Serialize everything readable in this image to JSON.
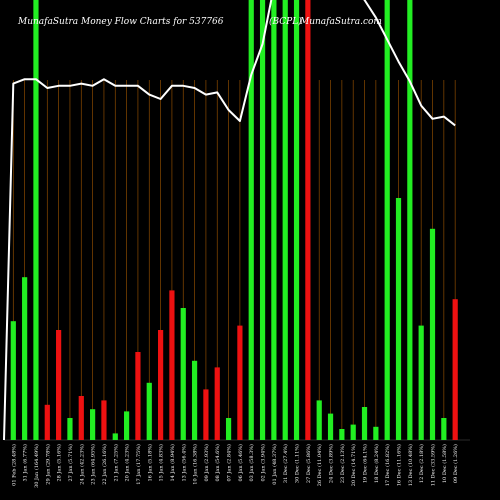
{
  "chart_data": {
    "type": "bar",
    "title": "MunafaSutra  Money Flow  Charts for 537766",
    "title_right": "(BCPL)",
    "watermark": "MunafaSutra.com",
    "ylim": [
      0,
      100
    ],
    "colors": {
      "up": "#22ee22",
      "down": "#ee1111",
      "line": "#ffffff",
      "grid": "#8a4a00",
      "background": "#000000"
    },
    "categories": [
      "01 Feb (28.48%)",
      "31 Jan (6.77%)",
      "30 Jan (164.49%)",
      "29 Jan (29.78%)",
      "28 Jan (5.16%)",
      "27 Jan (5.71%)",
      "24 Jan (42.23%)",
      "23 Jan (64.95%)",
      "22 Jan (26.16%)",
      "21 Jan (7.25%)",
      "20 Jan (4.23%)",
      "17 Jan (17.75%)",
      "16 Jan (5.18%)",
      "15 Jan (4.83%)",
      "14 Jan (8.94%)",
      "13 Jan (56.4%)",
      "10 Jan (16.38%)",
      "09 Jan (2.93%)",
      "08 Jan (54.6%)",
      "07 Jan (2.84%)",
      "06 Jan (5.46%)",
      "03 Jan (58.3%)",
      "02 Jan (3.94%)",
      "01 Jan (48.37%)",
      "31 Dec (27.4%)",
      "30 Dec (1.11%)",
      "27 Dec (5.86%)",
      "26 Dec (11.04%)",
      "24 Dec (3.89%)",
      "23 Dec (2.13%)",
      "20 Dec (14.71%)",
      "19 Dec (64.1%)",
      "18 Dec (8.24%)",
      "17 Dec (16.82%)",
      "16 Dec (11.16%)",
      "13 Dec (10.48%)",
      "12 Dec (2.18%)",
      "11 Dec (33.59%)",
      "10 Dec (1.58%)",
      "09 Dec (1.26%)"
    ],
    "series": [
      {
        "values": [
          27,
          37,
          100,
          8,
          25,
          5,
          10,
          7,
          9,
          1.5,
          6.5,
          20,
          13,
          25,
          34,
          30,
          18,
          11.5,
          16.5,
          5,
          26,
          100,
          100,
          100,
          100,
          100,
          100,
          9,
          6,
          2.5,
          3.5,
          7.5,
          3,
          100,
          55,
          100,
          26,
          48,
          5,
          32
        ],
        "colors": [
          "up",
          "up",
          "up",
          "down",
          "down",
          "up",
          "down",
          "up",
          "down",
          "up",
          "up",
          "down",
          "up",
          "down",
          "down",
          "up",
          "up",
          "down",
          "down",
          "up",
          "down",
          "up",
          "up",
          "up",
          "up",
          "up",
          "down",
          "up",
          "up",
          "up",
          "up",
          "up",
          "up",
          "up",
          "up",
          "up",
          "up",
          "up",
          "up",
          "down"
        ]
      },
      {
        "values": [
          81,
          82,
          82,
          80,
          80.5,
          80.5,
          81,
          80.5,
          82,
          80.5,
          80.5,
          80.5,
          78.5,
          77.5,
          80.5,
          80.5,
          80,
          78.5,
          79,
          75,
          72.5,
          83,
          90,
          103,
          103,
          103,
          103,
          103,
          103,
          103,
          103,
          100,
          96,
          91,
          86,
          81.5,
          76,
          73,
          73.5,
          71.5
        ]
      }
    ]
  }
}
